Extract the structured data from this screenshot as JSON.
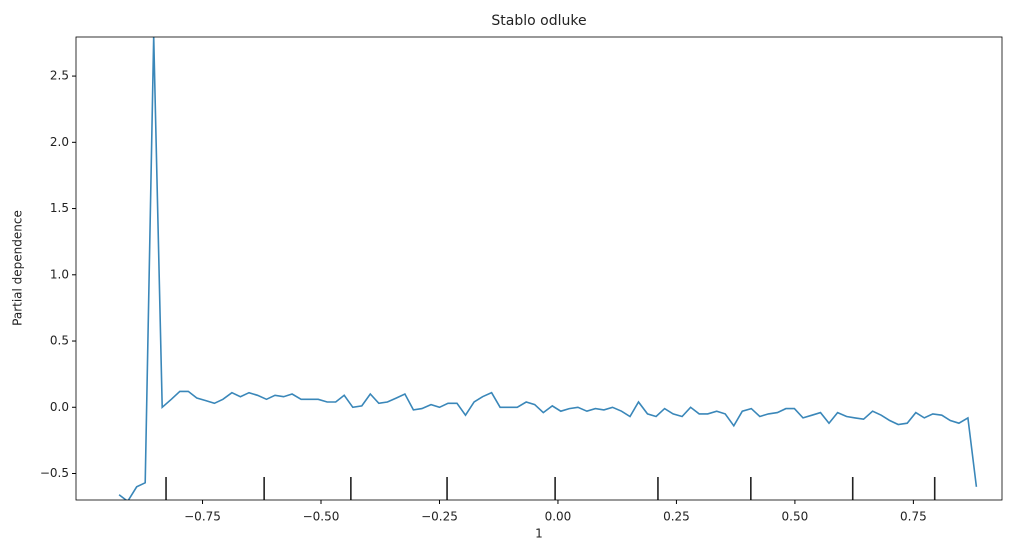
{
  "chart_data": {
    "type": "line",
    "title": "Stablo odluke",
    "xlabel": "1",
    "ylabel": "Partial dependence",
    "x": [
      -0.926,
      -0.908,
      -0.889,
      -0.871,
      -0.853,
      -0.835,
      -0.816,
      -0.798,
      -0.78,
      -0.762,
      -0.743,
      -0.725,
      -0.707,
      -0.688,
      -0.67,
      -0.652,
      -0.634,
      -0.615,
      -0.597,
      -0.579,
      -0.561,
      -0.542,
      -0.524,
      -0.506,
      -0.487,
      -0.469,
      -0.451,
      -0.433,
      -0.414,
      -0.396,
      -0.378,
      -0.36,
      -0.341,
      -0.323,
      -0.305,
      -0.287,
      -0.268,
      -0.25,
      -0.232,
      -0.213,
      -0.195,
      -0.177,
      -0.159,
      -0.14,
      -0.122,
      -0.104,
      -0.086,
      -0.067,
      -0.049,
      -0.031,
      -0.012,
      0.006,
      0.024,
      0.042,
      0.061,
      0.079,
      0.097,
      0.115,
      0.134,
      0.152,
      0.17,
      0.189,
      0.207,
      0.225,
      0.243,
      0.262,
      0.28,
      0.298,
      0.316,
      0.335,
      0.353,
      0.371,
      0.389,
      0.408,
      0.426,
      0.444,
      0.463,
      0.481,
      0.499,
      0.517,
      0.536,
      0.554,
      0.572,
      0.59,
      0.609,
      0.627,
      0.645,
      0.664,
      0.682,
      0.7,
      0.718,
      0.737,
      0.755,
      0.773,
      0.791,
      0.81,
      0.828,
      0.846,
      0.865,
      0.883
    ],
    "series": [
      {
        "color": "#3a87b9",
        "values": [
          -0.66,
          -0.71,
          -0.6,
          -0.57,
          2.8,
          0.0,
          0.06,
          0.12,
          0.12,
          0.07,
          0.05,
          0.03,
          0.06,
          0.11,
          0.08,
          0.11,
          0.09,
          0.06,
          0.09,
          0.08,
          0.1,
          0.06,
          0.06,
          0.06,
          0.04,
          0.04,
          0.09,
          0.0,
          0.01,
          0.1,
          0.03,
          0.04,
          0.07,
          0.1,
          -0.02,
          -0.01,
          0.02,
          0.0,
          0.03,
          0.03,
          -0.06,
          0.04,
          0.08,
          0.11,
          0.0,
          0.0,
          0.0,
          0.04,
          0.02,
          -0.04,
          0.01,
          -0.03,
          -0.01,
          0.0,
          -0.03,
          -0.01,
          -0.02,
          0.0,
          -0.03,
          -0.07,
          0.04,
          -0.05,
          -0.07,
          -0.01,
          -0.05,
          -0.07,
          0.0,
          -0.05,
          -0.05,
          -0.03,
          -0.05,
          -0.14,
          -0.03,
          -0.01,
          -0.07,
          -0.05,
          -0.04,
          -0.01,
          -0.01,
          -0.08,
          -0.06,
          -0.04,
          -0.12,
          -0.04,
          -0.07,
          -0.08,
          -0.09,
          -0.03,
          -0.06,
          -0.1,
          -0.13,
          -0.12,
          -0.04,
          -0.08,
          -0.05,
          -0.06,
          -0.1,
          -0.12,
          -0.08,
          -0.6
        ]
      }
    ],
    "deciles": [
      -0.827,
      -0.62,
      -0.437,
      -0.234,
      -0.006,
      0.211,
      0.407,
      0.622,
      0.795
    ],
    "xlim": [
      -1.017,
      0.937
    ],
    "ylim": [
      -0.7,
      2.795
    ],
    "xticks": [
      {
        "value": -0.75,
        "label": "−0.75"
      },
      {
        "value": -0.5,
        "label": "−0.50"
      },
      {
        "value": -0.25,
        "label": "−0.25"
      },
      {
        "value": 0,
        "label": "0.00"
      },
      0.25,
      {
        "value": 0.5,
        "label": "0.50"
      },
      0.75
    ],
    "yticks": [
      {
        "value": -0.5,
        "label": "−0.5"
      },
      {
        "value": 0,
        "label": "0.0"
      },
      0.5,
      {
        "value": 1,
        "label": "1.0"
      },
      1.5,
      {
        "value": 2,
        "label": "2.0"
      },
      2.5
    ]
  }
}
